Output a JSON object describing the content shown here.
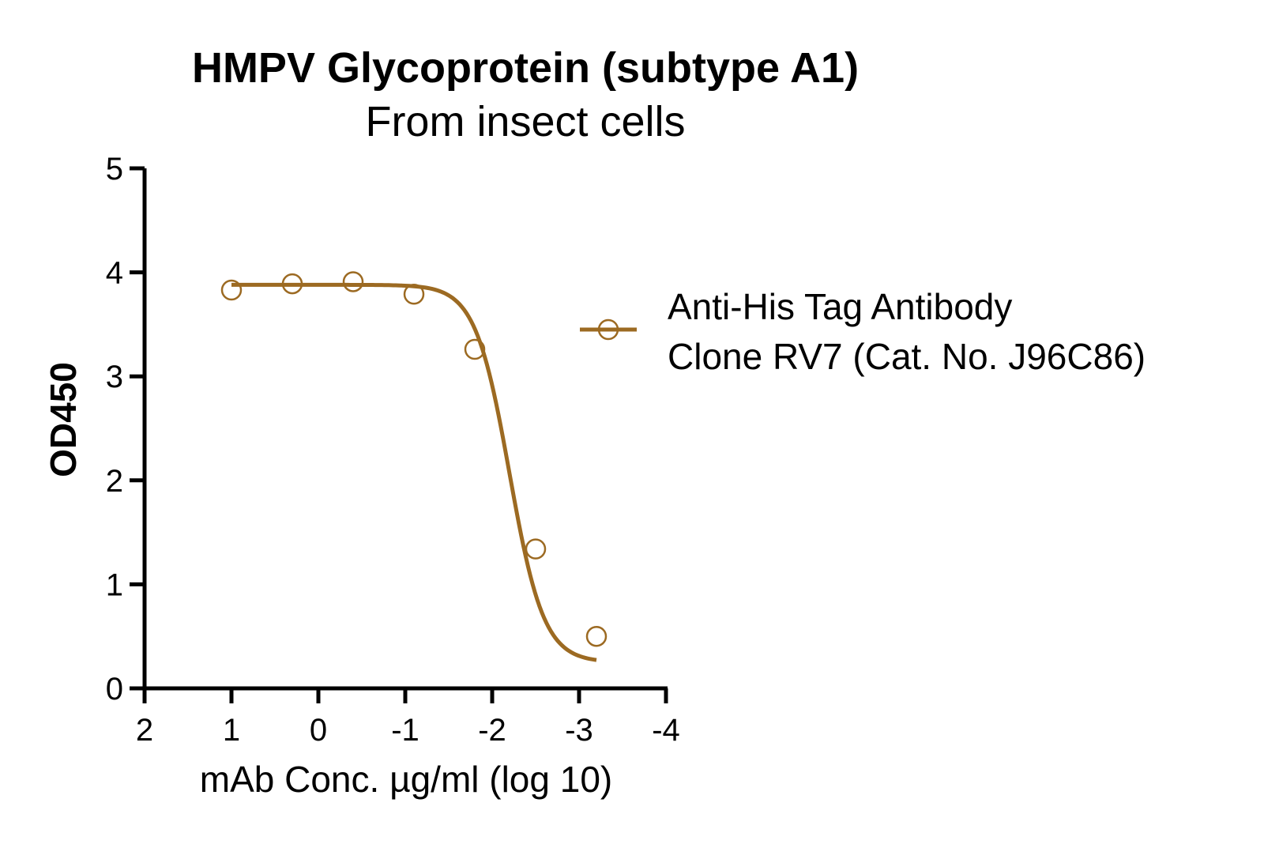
{
  "chart_data": {
    "type": "line",
    "title": "HMPV Glycoprotein (subtype A1)",
    "subtitle": "From insect cells",
    "xlabel": "mAb Conc. µg/ml (log 10)",
    "ylabel": "OD450",
    "xlim": [
      2,
      -4
    ],
    "ylim": [
      0,
      5
    ],
    "x_ticks": [
      2,
      1,
      0,
      -1,
      -2,
      -3,
      -4
    ],
    "x_tick_labels": [
      "2",
      "1",
      "0",
      "-1",
      "-2",
      "-3",
      "-4"
    ],
    "y_ticks": [
      0,
      1,
      2,
      3,
      4,
      5
    ],
    "y_tick_labels": [
      "0",
      "1",
      "2",
      "3",
      "4",
      "5"
    ],
    "grid": false,
    "legend_position": "right",
    "series": [
      {
        "name": "Anti-His Tag Antibody\nClone RV7 (Cat. No. J96C86)",
        "legend_lines": [
          "Anti-His Tag Antibody",
          "Clone RV7 (Cat. No. J96C86)"
        ],
        "color": "#9C6A22",
        "marker": "open-circle",
        "points": [
          {
            "x": 1.0,
            "y": 3.83
          },
          {
            "x": 0.3,
            "y": 3.89
          },
          {
            "x": -0.4,
            "y": 3.91
          },
          {
            "x": -1.1,
            "y": 3.79
          },
          {
            "x": -1.8,
            "y": 3.26
          },
          {
            "x": -2.5,
            "y": 1.34
          },
          {
            "x": -3.2,
            "y": 0.5
          }
        ],
        "fit": {
          "model": "4PL",
          "bottom": 0.25,
          "top": 3.88,
          "logEC50": -2.2,
          "hill": 2.2,
          "x_range": [
            1.0,
            -3.2
          ]
        }
      }
    ]
  }
}
